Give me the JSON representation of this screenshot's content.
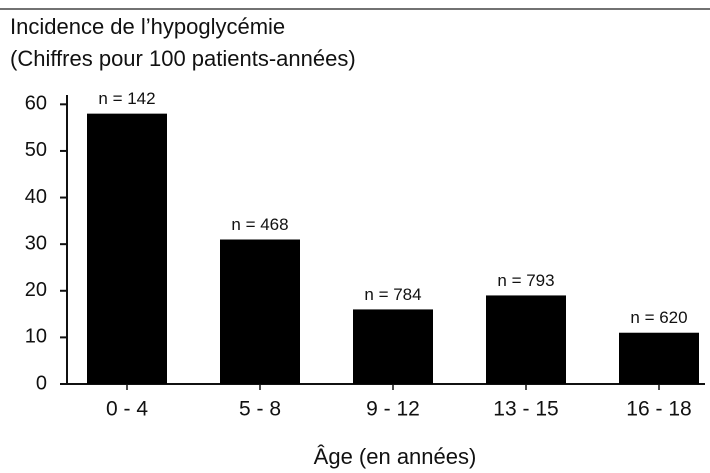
{
  "chart_data": {
    "type": "bar",
    "title": "Incidence de l’hypoglycémie",
    "subtitle": "(Chiffres pour 100 patients-années)",
    "xlabel": "Âge (en années)",
    "categories": [
      "0 - 4",
      "5 - 8",
      "9 - 12",
      "13 - 15",
      "16 - 18"
    ],
    "values": [
      58,
      31,
      16,
      19,
      11
    ],
    "annotations": [
      "n = 142",
      "n = 468",
      "n = 784",
      "n = 793",
      "n = 620"
    ],
    "color": "#000000",
    "ylim": [
      0,
      62
    ],
    "yticks": [
      0,
      10,
      20,
      30,
      40,
      50,
      60
    ],
    "grid": false
  }
}
